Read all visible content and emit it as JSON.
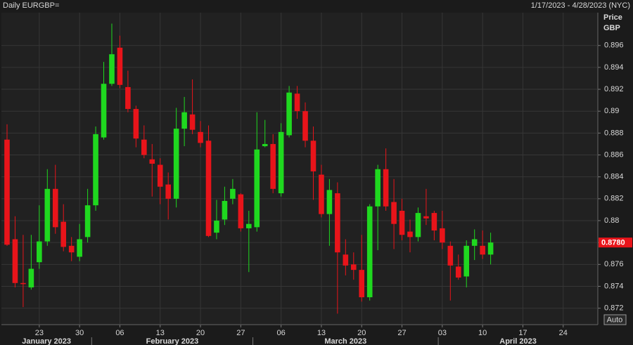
{
  "chart_data": {
    "type": "candlestick",
    "title": "Daily EURGBP=",
    "date_range": "1/17/2023 - 4/28/2023 (NYC)",
    "y_axis_label": "Price",
    "y_axis_unit": "GBP",
    "x": [
      "2023-01-17",
      "2023-01-18",
      "2023-01-19",
      "2023-01-20",
      "2023-01-23",
      "2023-01-24",
      "2023-01-25",
      "2023-01-26",
      "2023-01-27",
      "2023-01-30",
      "2023-01-31",
      "2023-02-01",
      "2023-02-02",
      "2023-02-03",
      "2023-02-06",
      "2023-02-07",
      "2023-02-08",
      "2023-02-09",
      "2023-02-10",
      "2023-02-13",
      "2023-02-14",
      "2023-02-15",
      "2023-02-16",
      "2023-02-17",
      "2023-02-20",
      "2023-02-21",
      "2023-02-22",
      "2023-02-23",
      "2023-02-24",
      "2023-02-27",
      "2023-02-28",
      "2023-03-01",
      "2023-03-02",
      "2023-03-03",
      "2023-03-06",
      "2023-03-07",
      "2023-03-08",
      "2023-03-09",
      "2023-03-10",
      "2023-03-13",
      "2023-03-14",
      "2023-03-15",
      "2023-03-16",
      "2023-03-17",
      "2023-03-20",
      "2023-03-21",
      "2023-03-22",
      "2023-03-23",
      "2023-03-24",
      "2023-03-27",
      "2023-03-28",
      "2023-03-29",
      "2023-03-30",
      "2023-03-31",
      "2023-04-03",
      "2023-04-04",
      "2023-04-05",
      "2023-04-06",
      "2023-04-07",
      "2023-04-10",
      "2023-04-11"
    ],
    "open": [
      0.8874,
      0.8783,
      0.8743,
      0.8739,
      0.8762,
      0.8781,
      0.8829,
      0.8799,
      0.8777,
      0.8767,
      0.8785,
      0.8814,
      0.8876,
      0.8925,
      0.8958,
      0.8922,
      0.8902,
      0.8874,
      0.8856,
      0.8851,
      0.8833,
      0.882,
      0.8884,
      0.8897,
      0.8881,
      0.8873,
      0.8789,
      0.8801,
      0.882,
      0.8824,
      0.8793,
      0.8794,
      0.8868,
      0.887,
      0.8825,
      0.8878,
      0.8916,
      0.89,
      0.8873,
      0.8842,
      0.8806,
      0.8825,
      0.8769,
      0.876,
      0.8755,
      0.873,
      0.8813,
      0.8847,
      0.8817,
      0.8809,
      0.879,
      0.8785,
      0.8804,
      0.8807,
      0.8793,
      0.8777,
      0.8758,
      0.8749,
      0.8777,
      0.8777,
      0.8769
    ],
    "high": [
      0.8888,
      0.8804,
      0.8787,
      0.8787,
      0.8814,
      0.8847,
      0.8851,
      0.8815,
      0.8785,
      0.8797,
      0.8829,
      0.8886,
      0.8945,
      0.898,
      0.8969,
      0.8937,
      0.8905,
      0.8887,
      0.887,
      0.8857,
      0.8844,
      0.8903,
      0.8913,
      0.8929,
      0.8891,
      0.8887,
      0.8819,
      0.8831,
      0.8838,
      0.8825,
      0.8809,
      0.8899,
      0.8892,
      0.8879,
      0.8889,
      0.8923,
      0.8923,
      0.8908,
      0.8886,
      0.8851,
      0.8838,
      0.8835,
      0.8783,
      0.8771,
      0.8787,
      0.8815,
      0.8851,
      0.8866,
      0.8838,
      0.882,
      0.8801,
      0.8812,
      0.8829,
      0.8809,
      0.8809,
      0.8781,
      0.8769,
      0.8782,
      0.8792,
      0.8791,
      0.8789
    ],
    "low": [
      0.8777,
      0.8739,
      0.8721,
      0.8737,
      0.8756,
      0.8777,
      0.8788,
      0.8772,
      0.8763,
      0.8763,
      0.878,
      0.8809,
      0.8874,
      0.8923,
      0.8921,
      0.8899,
      0.8867,
      0.8857,
      0.8822,
      0.8815,
      0.8801,
      0.8812,
      0.8868,
      0.8879,
      0.8867,
      0.8785,
      0.8783,
      0.8796,
      0.8815,
      0.879,
      0.8753,
      0.879,
      0.8867,
      0.8825,
      0.8822,
      0.8876,
      0.8893,
      0.8867,
      0.8819,
      0.8803,
      0.8777,
      0.8715,
      0.875,
      0.8746,
      0.8726,
      0.8727,
      0.8773,
      0.8809,
      0.8774,
      0.8782,
      0.8771,
      0.8781,
      0.8796,
      0.8782,
      0.8774,
      0.8727,
      0.8746,
      0.8739,
      0.8764,
      0.8765,
      0.876
    ],
    "close": [
      0.8778,
      0.8743,
      0.8742,
      0.8756,
      0.8781,
      0.8829,
      0.8794,
      0.8776,
      0.8771,
      0.8783,
      0.8814,
      0.8879,
      0.8925,
      0.8952,
      0.8924,
      0.8902,
      0.8875,
      0.886,
      0.8852,
      0.8831,
      0.882,
      0.8884,
      0.8899,
      0.8883,
      0.8871,
      0.8786,
      0.88,
      0.8818,
      0.8829,
      0.8793,
      0.8797,
      0.8865,
      0.887,
      0.8829,
      0.8881,
      0.8917,
      0.89,
      0.8873,
      0.8845,
      0.8806,
      0.8828,
      0.8771,
      0.8759,
      0.8755,
      0.873,
      0.8813,
      0.8847,
      0.8813,
      0.8797,
      0.8787,
      0.8785,
      0.8807,
      0.8802,
      0.8791,
      0.878,
      0.8759,
      0.8748,
      0.8777,
      0.8783,
      0.8769,
      0.878
    ],
    "up_color": "#1fd81f",
    "down_color": "#e8141a",
    "ylim": [
      0.8705,
      0.899
    ],
    "yticks": [
      0.872,
      0.874,
      0.876,
      0.878,
      0.88,
      0.882,
      0.884,
      0.886,
      0.888,
      0.89,
      0.892,
      0.894,
      0.896
    ],
    "xticks": [
      {
        "value": "2023-01-23",
        "label": "23"
      },
      {
        "value": "2023-01-30",
        "label": "30"
      },
      {
        "value": "2023-02-06",
        "label": "06"
      },
      {
        "value": "2023-02-13",
        "label": "13"
      },
      {
        "value": "2023-02-20",
        "label": "20"
      },
      {
        "value": "2023-02-27",
        "label": "27"
      },
      {
        "value": "2023-03-06",
        "label": "06"
      },
      {
        "value": "2023-03-13",
        "label": "13"
      },
      {
        "value": "2023-03-20",
        "label": "20"
      },
      {
        "value": "2023-03-27",
        "label": "27"
      },
      {
        "value": "2023-04-03",
        "label": "03"
      },
      {
        "value": "2023-04-10",
        "label": "10"
      },
      {
        "value": "2023-04-17",
        "label": "17"
      },
      {
        "value": "2023-04-24",
        "label": "24"
      }
    ],
    "months": [
      {
        "value": "2023-01-01",
        "label": "January 2023"
      },
      {
        "value": "2023-02-01",
        "label": "February 2023"
      },
      {
        "value": "2023-03-01",
        "label": "March 2023"
      },
      {
        "value": "2023-04-01",
        "label": "April 2023"
      }
    ],
    "last_price": {
      "value": 0.878,
      "label": "0.8780"
    },
    "scale_mode": "Auto",
    "grid": true
  }
}
